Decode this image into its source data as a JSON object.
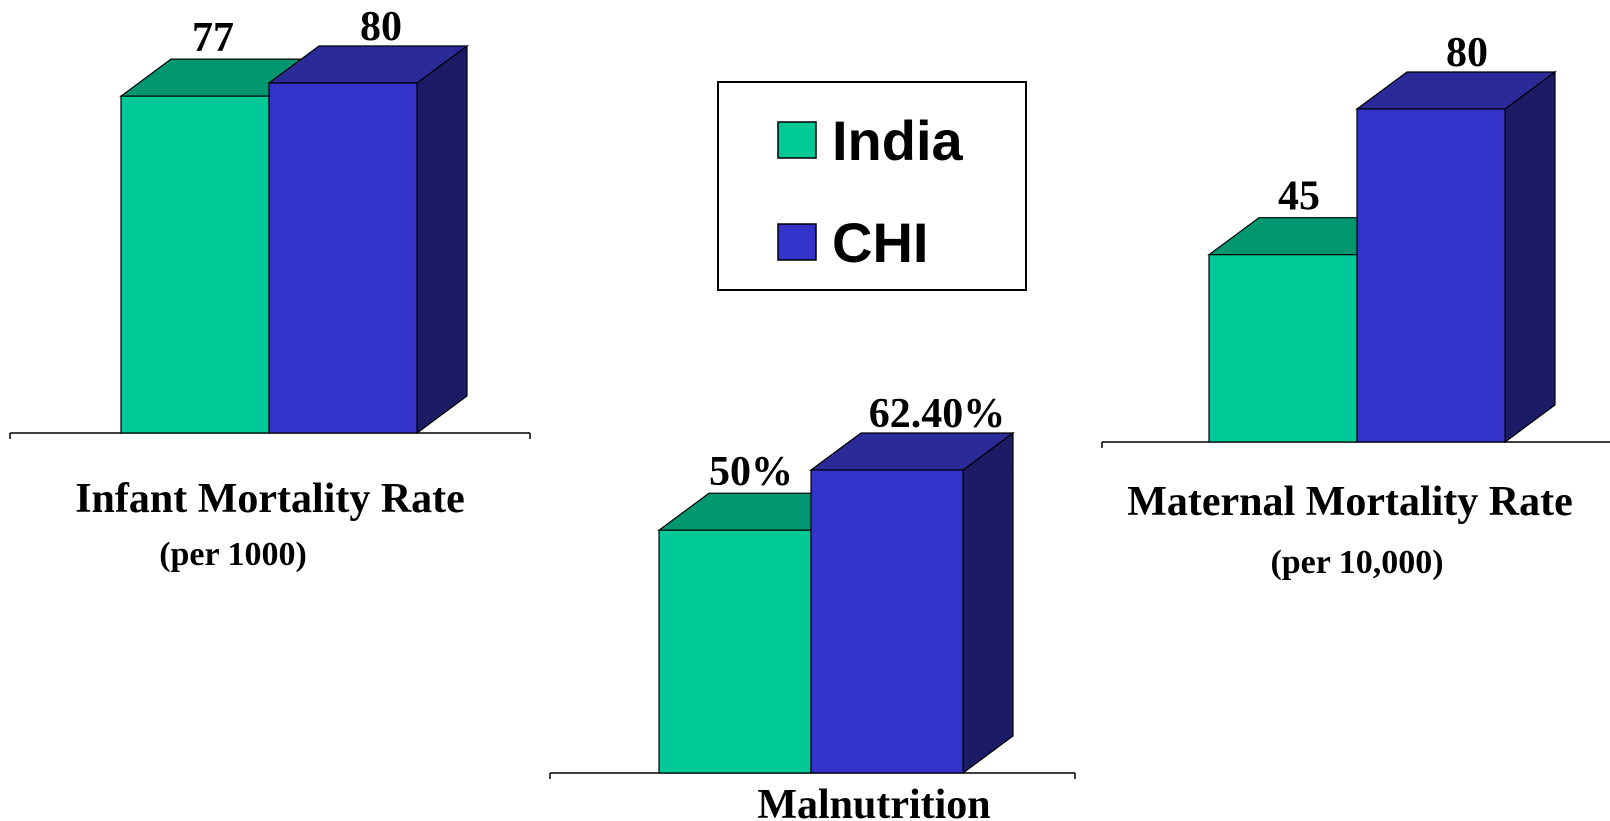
{
  "legend": {
    "items": [
      {
        "label": "India",
        "color": "#00c896"
      },
      {
        "label": "CHI",
        "color": "#3333cc"
      }
    ]
  },
  "colors": {
    "india_front": "#00c896",
    "india_top": "#009670",
    "chi_front": "#3333cc",
    "chi_top": "#2a2a99",
    "chi_side": "#1c1c66"
  },
  "chart_data": [
    {
      "type": "bar",
      "title": "Infant Mortality Rate",
      "subtitle": "(per 1000)",
      "categories": [
        "India",
        "CHI"
      ],
      "values": [
        77,
        80
      ],
      "value_labels": [
        "77",
        "80"
      ],
      "ylim": [
        0,
        80
      ],
      "grid": false
    },
    {
      "type": "bar",
      "title": "Malnutrition",
      "subtitle": "",
      "categories": [
        "India",
        "CHI"
      ],
      "values": [
        50,
        62.4
      ],
      "value_labels": [
        "50%",
        "62.40%"
      ],
      "ylim": [
        0,
        62.4
      ],
      "grid": false
    },
    {
      "type": "bar",
      "title": "Maternal Mortality Rate",
      "subtitle": "(per 10,000)",
      "categories": [
        "India",
        "CHI"
      ],
      "values": [
        45,
        80
      ],
      "value_labels": [
        "45",
        "80"
      ],
      "ylim": [
        0,
        80
      ],
      "grid": false
    }
  ]
}
